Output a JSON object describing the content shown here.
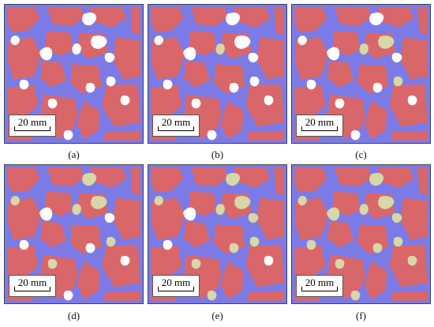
{
  "panels": [
    {
      "caption": "(a)",
      "scale_label": "20 mm",
      "stage": 0
    },
    {
      "caption": "(b)",
      "scale_label": "20 mm",
      "stage": 1
    },
    {
      "caption": "(c)",
      "scale_label": "20 mm",
      "stage": 2
    },
    {
      "caption": "(d)",
      "scale_label": "20 mm",
      "stage": 3
    },
    {
      "caption": "(e)",
      "scale_label": "20 mm",
      "stage": 4
    },
    {
      "caption": "(f)",
      "scale_label": "20 mm",
      "stage": 5
    }
  ],
  "colors": {
    "aggregate": "#d9676a",
    "mortar": "#7b7be8",
    "void": "#ffffff",
    "fill": "#d6d8a6",
    "border": "#444444"
  }
}
